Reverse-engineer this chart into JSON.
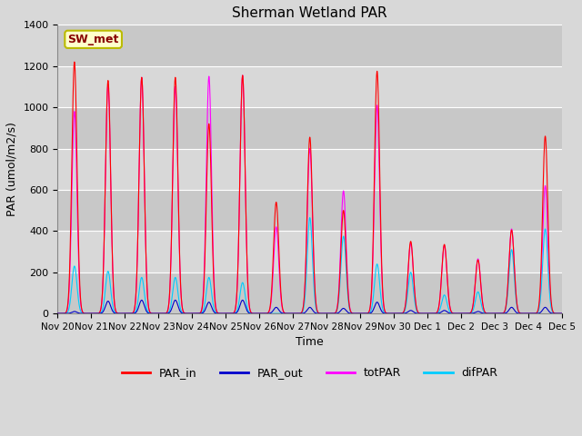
{
  "title": "Sherman Wetland PAR",
  "ylabel": "PAR (umol/m2/s)",
  "xlabel": "Time",
  "ylim": [
    0,
    1400
  ],
  "yticks": [
    0,
    200,
    400,
    600,
    800,
    1000,
    1200,
    1400
  ],
  "xtick_labels": [
    "Nov 20",
    "Nov 21",
    "Nov 22",
    "Nov 23",
    "Nov 24",
    "Nov 25",
    "Nov 26",
    "Nov 27",
    "Nov 28",
    "Nov 29",
    "Nov 30",
    "Dec 1",
    "Dec 2",
    "Dec 3",
    "Dec 4",
    "Dec 5"
  ],
  "annotation_text": "SW_met",
  "annotation_bg": "#ffffcc",
  "annotation_border": "#bbbb00",
  "annotation_text_color": "#880000",
  "line_colors": {
    "PAR_in": "#ff0000",
    "PAR_out": "#0000cc",
    "totPAR": "#ff00ff",
    "difPAR": "#00ccff"
  },
  "bg_color": "#d8d8d8",
  "plot_bg_color": "#d8d8d8",
  "grid_color": "#ffffff",
  "band_colors": [
    "#c8c8c8",
    "#d8d8d8"
  ],
  "peaks": {
    "Nov20": {
      "PAR_in": 1220,
      "totPAR": 980,
      "difPAR": 230,
      "PAR_out": 10
    },
    "Nov21": {
      "PAR_in": 1130,
      "totPAR": 1110,
      "difPAR": 205,
      "PAR_out": 60
    },
    "Nov22": {
      "PAR_in": 1145,
      "totPAR": 1145,
      "difPAR": 175,
      "PAR_out": 65
    },
    "Nov23": {
      "PAR_in": 1145,
      "totPAR": 1100,
      "difPAR": 175,
      "PAR_out": 65
    },
    "Nov24": {
      "PAR_in": 920,
      "totPAR": 1150,
      "difPAR": 175,
      "PAR_out": 55
    },
    "Nov25": {
      "PAR_in": 1155,
      "totPAR": 1155,
      "difPAR": 150,
      "PAR_out": 65
    },
    "Nov26": {
      "PAR_in": 540,
      "totPAR": 420,
      "difPAR": 0,
      "PAR_out": 30
    },
    "Nov27": {
      "PAR_in": 855,
      "totPAR": 800,
      "difPAR": 465,
      "PAR_out": 30
    },
    "Nov28": {
      "PAR_in": 500,
      "totPAR": 595,
      "difPAR": 375,
      "PAR_out": 25
    },
    "Nov29": {
      "PAR_in": 1175,
      "totPAR": 1010,
      "difPAR": 240,
      "PAR_out": 55
    },
    "Nov30": {
      "PAR_in": 350,
      "totPAR": 340,
      "difPAR": 200,
      "PAR_out": 15
    },
    "Dec1": {
      "PAR_in": 335,
      "totPAR": 330,
      "difPAR": 90,
      "PAR_out": 15
    },
    "Dec2": {
      "PAR_in": 260,
      "totPAR": 265,
      "difPAR": 105,
      "PAR_out": 10
    },
    "Dec3": {
      "PAR_in": 405,
      "totPAR": 410,
      "difPAR": 310,
      "PAR_out": 30
    },
    "Dec4": {
      "PAR_in": 860,
      "totPAR": 620,
      "difPAR": 410,
      "PAR_out": 30
    }
  }
}
